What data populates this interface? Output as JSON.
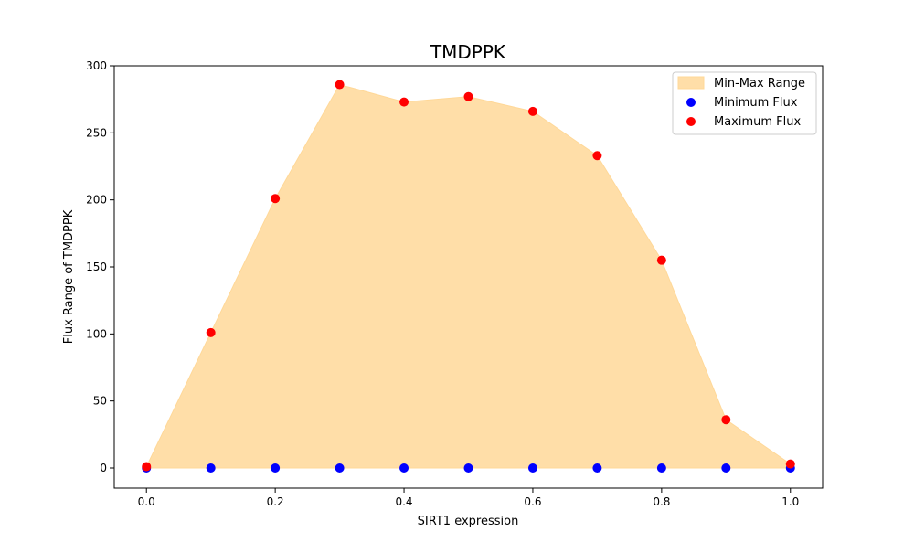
{
  "chart_data": {
    "type": "scatter",
    "title": "TMDPPK",
    "xlabel": "SIRT1 expression",
    "ylabel": "Flux Range of TMDPPK",
    "xlim": [
      -0.05,
      1.05
    ],
    "ylim": [
      -15,
      300
    ],
    "xticks": [
      0.0,
      0.2,
      0.4,
      0.6,
      0.8,
      1.0
    ],
    "xtick_labels": [
      "0.0",
      "0.2",
      "0.4",
      "0.6",
      "0.8",
      "1.0"
    ],
    "yticks": [
      0,
      50,
      100,
      150,
      200,
      250,
      300
    ],
    "ytick_labels": [
      "0",
      "50",
      "100",
      "150",
      "200",
      "250",
      "300"
    ],
    "grid": false,
    "legend_position": "top-right",
    "x": [
      0.0,
      0.1,
      0.2,
      0.3,
      0.4,
      0.5,
      0.6,
      0.7,
      0.8,
      0.9,
      1.0
    ],
    "series": [
      {
        "name": "Min-Max Range",
        "kind": "area",
        "color": "#ffdea8"
      },
      {
        "name": "Minimum Flux",
        "kind": "scatter",
        "color": "#0000ff",
        "values": [
          0,
          0,
          0,
          0,
          0,
          0,
          0,
          0,
          0,
          0,
          0
        ]
      },
      {
        "name": "Maximum Flux",
        "kind": "scatter",
        "color": "#ff0000",
        "values": [
          1,
          101,
          201,
          286,
          273,
          277,
          266,
          233,
          155,
          36,
          3
        ]
      }
    ]
  }
}
